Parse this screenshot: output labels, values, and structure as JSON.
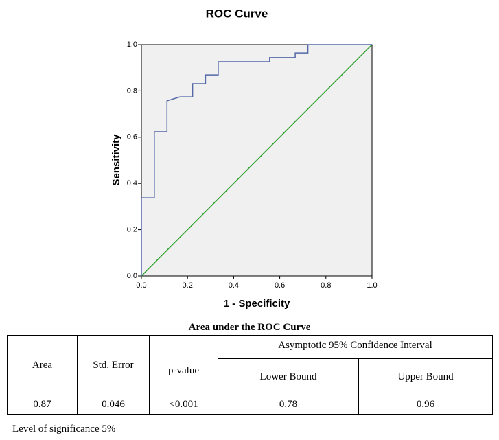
{
  "chart_data": {
    "type": "line",
    "title": "ROC Curve",
    "xlabel": "1 - Specificity",
    "ylabel": "Sensitivity",
    "series": [
      {
        "color": "#5468a8",
        "x": [
          0,
          0,
          0.056,
          0.056,
          0.111,
          0.111,
          0.167,
          0.222,
          0.222,
          0.278,
          0.278,
          0.333,
          0.333,
          0.556,
          0.556,
          0.667,
          0.667,
          0.722,
          0.722,
          1
        ],
        "values": [
          0,
          0.338,
          0.338,
          0.623,
          0.623,
          0.757,
          0.774,
          0.774,
          0.831,
          0.831,
          0.869,
          0.869,
          0.926,
          0.926,
          0.944,
          0.944,
          0.964,
          0.964,
          1,
          1
        ]
      },
      {
        "color": "#2ca02c",
        "x": [
          0,
          1
        ],
        "values": [
          0,
          1
        ]
      }
    ],
    "xlim": [
      0,
      1
    ],
    "ylim": [
      0,
      1
    ],
    "xticks": [
      {
        "value": 0,
        "label": "0.0"
      },
      0.2,
      0.4,
      0.6,
      0.8,
      {
        "value": 1,
        "label": "1.0"
      }
    ],
    "yticks": [
      {
        "value": 0,
        "label": "0.0"
      },
      0.2,
      0.4,
      0.6,
      0.8,
      {
        "value": 1,
        "label": "1.0"
      }
    ],
    "background": "#f0f0f0"
  },
  "table": {
    "caption": "Area under the ROC Curve",
    "columns": [
      "Area",
      "Std. Error",
      "p-value"
    ],
    "group_header": "Asymptotic 95% Confidence Interval",
    "subcolumns": [
      "Lower Bound",
      "Upper Bound"
    ],
    "rows": [
      [
        "0.87",
        "0.046",
        "<0.001",
        "0.78",
        "0.96"
      ]
    ]
  },
  "footnote": "Level of significance 5%"
}
